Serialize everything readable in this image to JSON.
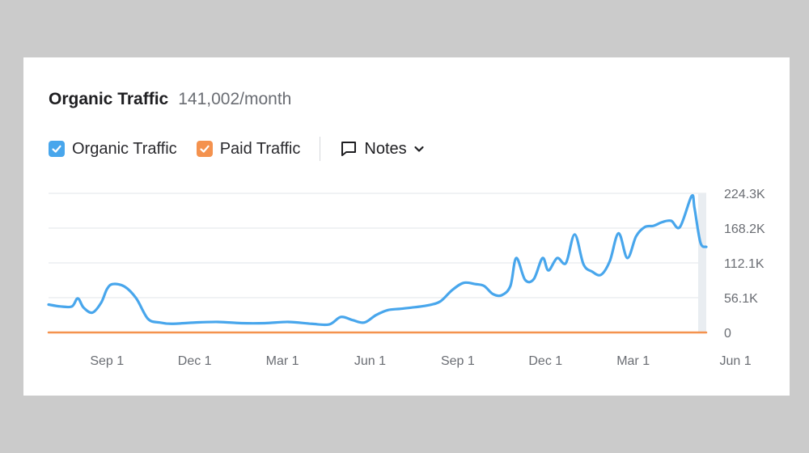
{
  "header": {
    "title": "Organic Traffic",
    "subtitle": "141,002/month"
  },
  "legend": {
    "organic": {
      "label": "Organic Traffic",
      "color": "#48a6ec",
      "checked": true
    },
    "paid": {
      "label": "Paid Traffic",
      "color": "#f4924e",
      "checked": true
    },
    "notes_label": "Notes"
  },
  "chart_data": {
    "type": "line",
    "title": "",
    "xlabel": "",
    "ylabel": "",
    "x_tick_labels": [
      "Sep 1",
      "Dec 1",
      "Mar 1",
      "Jun 1",
      "Sep 1",
      "Dec 1",
      "Mar 1",
      "Jun 1"
    ],
    "y_tick_labels": [
      "0",
      "56.1K",
      "112.1K",
      "168.2K",
      "224.3K"
    ],
    "y_ticks": [
      0,
      56100,
      112100,
      168200,
      224300
    ],
    "ylim": [
      0,
      224300
    ],
    "xlim": [
      0,
      22.5
    ],
    "x_ticks": [
      2,
      5,
      8,
      11,
      14,
      17,
      20,
      23
    ],
    "grid": true,
    "series": [
      {
        "name": "Organic Traffic",
        "color": "#48a6ec",
        "x": [
          0,
          0.4,
          0.8,
          1.0,
          1.2,
          1.5,
          1.8,
          2.0,
          2.2,
          2.6,
          3.0,
          3.4,
          3.8,
          4.2,
          5.0,
          5.8,
          6.6,
          7.4,
          8.2,
          9.0,
          9.6,
          10.0,
          10.4,
          10.8,
          11.2,
          11.6,
          12.0,
          12.4,
          13.0,
          13.4,
          13.8,
          14.2,
          14.6,
          14.9,
          15.2,
          15.5,
          15.8,
          16.0,
          16.3,
          16.6,
          16.9,
          17.1,
          17.4,
          17.7,
          18.0,
          18.3,
          18.6,
          18.9,
          19.2,
          19.5,
          19.8,
          20.1,
          20.4,
          20.7,
          21.0,
          21.3,
          21.6,
          22.0,
          22.1,
          22.3,
          22.5
        ],
        "y": [
          45000,
          42000,
          42000,
          55000,
          40000,
          32000,
          48000,
          70000,
          78000,
          74000,
          55000,
          22000,
          16000,
          14000,
          16000,
          17000,
          15000,
          15000,
          17000,
          14000,
          13000,
          25000,
          20000,
          16000,
          28000,
          36000,
          38000,
          40000,
          44000,
          50000,
          68000,
          80000,
          78000,
          75000,
          62000,
          60000,
          75000,
          120000,
          85000,
          86000,
          120000,
          100000,
          120000,
          112000,
          158000,
          110000,
          98000,
          93000,
          115000,
          160000,
          120000,
          155000,
          170000,
          172000,
          178000,
          180000,
          170000,
          220000,
          200000,
          145000,
          138000
        ]
      },
      {
        "name": "Paid Traffic",
        "color": "#f4924e",
        "x": [
          0,
          22.5
        ],
        "y": [
          0,
          0
        ]
      }
    ]
  }
}
